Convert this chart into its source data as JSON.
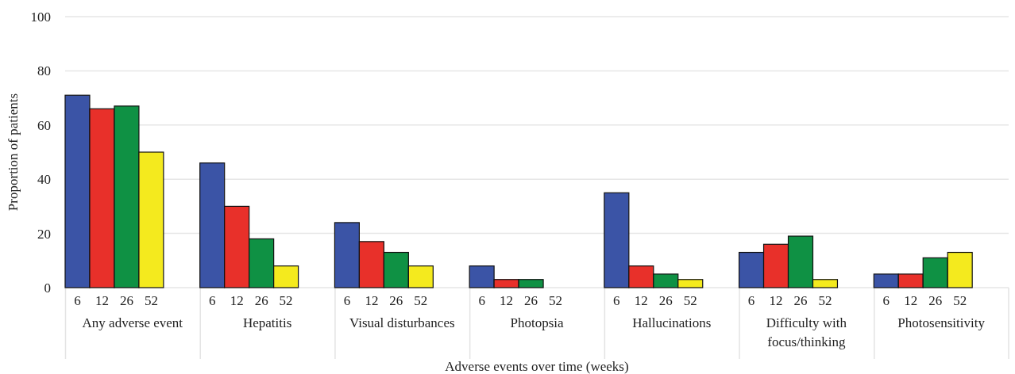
{
  "chart_data": {
    "type": "bar",
    "xlabel": "Adverse events over time (weeks)",
    "ylabel": "Proportion of patients",
    "categories": [
      "Any adverse event",
      "Hepatitis",
      "Visual disturbances",
      "Photopsia",
      "Hallucinations",
      "Difficulty with focus/thinking",
      "Photosensitivity"
    ],
    "series": [
      {
        "name": "6",
        "color": "#3b54a6",
        "values": [
          71,
          46,
          24,
          8,
          35,
          13,
          5
        ]
      },
      {
        "name": "12",
        "color": "#e8302a",
        "values": [
          66,
          30,
          17,
          3,
          8,
          16,
          5
        ]
      },
      {
        "name": "26",
        "color": "#0f9144",
        "values": [
          67,
          18,
          13,
          3,
          5,
          19,
          11
        ]
      },
      {
        "name": "52",
        "color": "#f4ea1e",
        "values": [
          50,
          8,
          8,
          0,
          3,
          3,
          13
        ]
      }
    ],
    "ylim": [
      0,
      100
    ],
    "yticks": [
      0,
      20,
      40,
      60,
      80,
      100
    ],
    "grid": "y",
    "legend": false
  }
}
